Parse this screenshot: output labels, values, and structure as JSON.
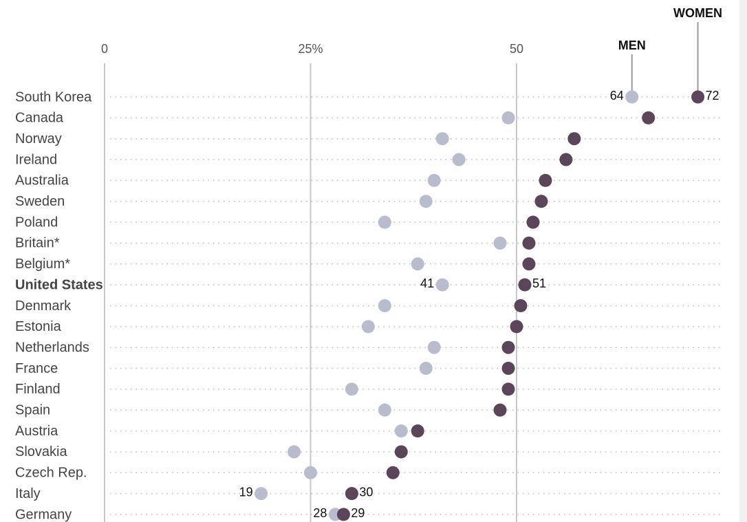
{
  "chart_data": {
    "type": "dot",
    "categories": [
      "South Korea",
      "Canada",
      "Norway",
      "Ireland",
      "Australia",
      "Sweden",
      "Poland",
      "Britain*",
      "Belgium*",
      "United States",
      "Denmark",
      "Estonia",
      "Netherlands",
      "France",
      "Finland",
      "Spain",
      "Austria",
      "Slovakia",
      "Czech Rep.",
      "Italy",
      "Germany"
    ],
    "highlight": 9,
    "series": [
      {
        "name": "MEN",
        "color": "#b9bccd",
        "values": [
          64,
          49,
          41,
          43,
          40,
          39,
          34,
          48,
          38,
          41,
          34,
          32,
          40,
          39,
          30,
          34,
          36,
          23,
          25,
          19,
          28
        ],
        "labels_at": [
          0,
          9,
          19,
          20
        ]
      },
      {
        "name": "WOMEN",
        "color": "#5b4558",
        "values": [
          72,
          66,
          57,
          56,
          53.5,
          53,
          52,
          51.5,
          51.5,
          51,
          50.5,
          50,
          49,
          49,
          49,
          48,
          38,
          36,
          35,
          30,
          29
        ],
        "labels_at": [
          0,
          9,
          19,
          20
        ]
      }
    ],
    "xlim": [
      0,
      75
    ],
    "xticks": [
      0,
      {
        "value": 25,
        "label": "25%"
      },
      50
    ],
    "grid": true
  }
}
